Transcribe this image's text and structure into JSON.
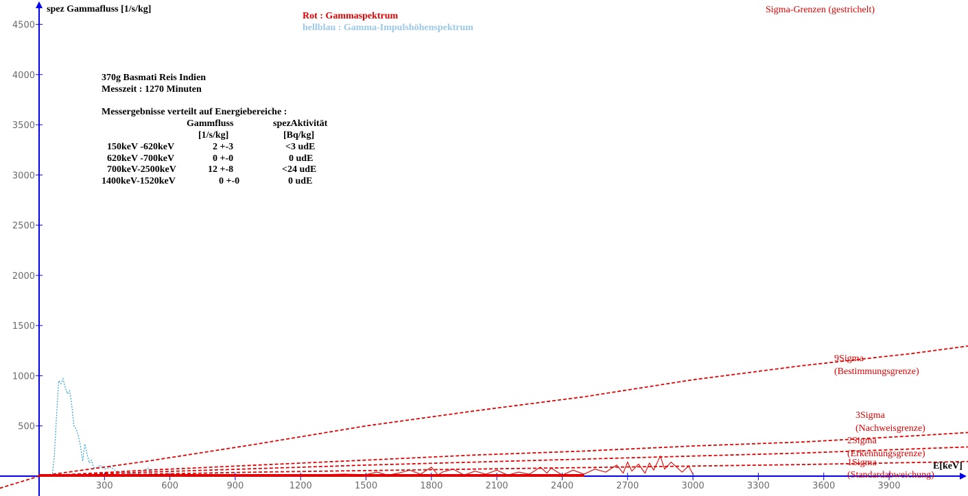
{
  "chart_data": {
    "type": "line",
    "ylabel": "spez Gammafluss [1/s/kg]",
    "xlabel": "E[keV]",
    "xlim": [
      -180,
      4380
    ],
    "ylim": [
      0,
      4700
    ],
    "x_ticks": [
      300,
      600,
      900,
      1200,
      1500,
      1800,
      2100,
      2400,
      2700,
      3000,
      3300,
      3600,
      3900
    ],
    "y_ticks": [
      500,
      1000,
      1500,
      2000,
      2500,
      3000,
      3500,
      4000,
      4500
    ],
    "legend": {
      "red": "Rot   : Gammaspektrum",
      "lightblue": "hellblau : Gamma-Impulshöhenspektrum",
      "sigma": "Sigma-Grenzen (gestrichelt)"
    },
    "series": [
      {
        "name": "Gammaspektrum",
        "color": "#e00000",
        "style": "solid",
        "x": [
          0,
          200,
          400,
          600,
          800,
          1000,
          1200,
          1400,
          1500,
          1550,
          1600,
          1650,
          1700,
          1750,
          1800,
          1830,
          1850,
          1900,
          1950,
          2000,
          2050,
          2100,
          2150,
          2200,
          2250,
          2300,
          2330,
          2350,
          2400,
          2450,
          2500,
          2550,
          2600,
          2650,
          2680,
          2700,
          2720,
          2750,
          2780,
          2800,
          2820,
          2850,
          2870,
          2900,
          2950,
          2980,
          3000
        ],
        "values": [
          10,
          10,
          10,
          10,
          10,
          10,
          10,
          20,
          15,
          40,
          10,
          30,
          60,
          20,
          90,
          10,
          40,
          70,
          10,
          50,
          20,
          60,
          10,
          40,
          20,
          90,
          30,
          80,
          10,
          60,
          20,
          70,
          40,
          110,
          30,
          140,
          50,
          120,
          30,
          130,
          60,
          200,
          70,
          140,
          40,
          100,
          20
        ]
      },
      {
        "name": "Gamma-Impulshöhenspektrum",
        "color": "#2aa0d8",
        "style": "dotted",
        "x": [
          60,
          70,
          80,
          90,
          100,
          110,
          120,
          130,
          140,
          150,
          160,
          170,
          180,
          190,
          200,
          210,
          220,
          230,
          240,
          250,
          260,
          280,
          300,
          330,
          360,
          400,
          450,
          500,
          520,
          550
        ],
        "values": [
          0,
          200,
          600,
          950,
          920,
          970,
          880,
          820,
          850,
          700,
          500,
          470,
          400,
          300,
          150,
          320,
          220,
          130,
          160,
          90,
          80,
          110,
          70,
          90,
          40,
          30,
          20,
          80,
          20,
          0
        ]
      },
      {
        "name": "9Sigma",
        "color": "#e00000",
        "style": "dashed",
        "x": [
          -180,
          0,
          500,
          1000,
          1500,
          2000,
          2500,
          3000,
          3500,
          4000,
          4380
        ],
        "values": [
          -120,
          0,
          150,
          320,
          500,
          650,
          790,
          960,
          1100,
          1220,
          1330
        ]
      },
      {
        "name": "3Sigma",
        "color": "#e00000",
        "style": "dashed",
        "x": [
          0,
          500,
          1000,
          1500,
          2000,
          2500,
          3000,
          3500,
          4000,
          4380
        ],
        "values": [
          0,
          60,
          110,
          160,
          210,
          250,
          300,
          340,
          400,
          450
        ]
      },
      {
        "name": "2Sigma",
        "color": "#e00000",
        "style": "dashed",
        "x": [
          0,
          500,
          1000,
          1500,
          2000,
          2500,
          3000,
          3500,
          4000,
          4380
        ],
        "values": [
          0,
          40,
          75,
          110,
          140,
          170,
          200,
          230,
          270,
          300
        ]
      },
      {
        "name": "1Sigma",
        "color": "#e00000",
        "style": "dashed",
        "x": [
          0,
          500,
          1000,
          1500,
          2000,
          2500,
          3000,
          3500,
          4000,
          4380
        ],
        "values": [
          0,
          20,
          40,
          55,
          70,
          85,
          100,
          115,
          135,
          150
        ]
      }
    ],
    "annotations": [
      {
        "line1": "9Sigma",
        "line2": "(Bestimmungsgrenze)"
      },
      {
        "line1": "3Sigma",
        "line2": "(Nachweisgrenze)"
      },
      {
        "line1": "2Sigma",
        "line2": "(Erkennungsgrenze)"
      },
      {
        "line1": "1Sigma",
        "line2": "(Standardabweichung)"
      }
    ],
    "info": {
      "sample": "370g Basmati Reis Indien",
      "time": "Messzeit : 1270 Minuten",
      "heading": "Messergebnisse verteilt auf  Energiebereiche :",
      "col1_header": "Gammfluss",
      "col1_unit": "[1/s/kg]",
      "col2_header": "spezAktivität",
      "col2_unit": "[Bq/kg]",
      "rows": [
        {
          "range": "150keV -620keV",
          "flux": "2  +-3",
          "activity": "<3  udE"
        },
        {
          "range": "620keV -700keV",
          "flux": "0 +-0",
          "activity": "0  udE"
        },
        {
          "range": "700keV-2500keV",
          "flux": "12  +-8",
          "activity": "<24  udE"
        },
        {
          "range": "1400keV-1520keV",
          "flux": "0 +-0",
          "activity": "0  udE"
        }
      ]
    }
  }
}
